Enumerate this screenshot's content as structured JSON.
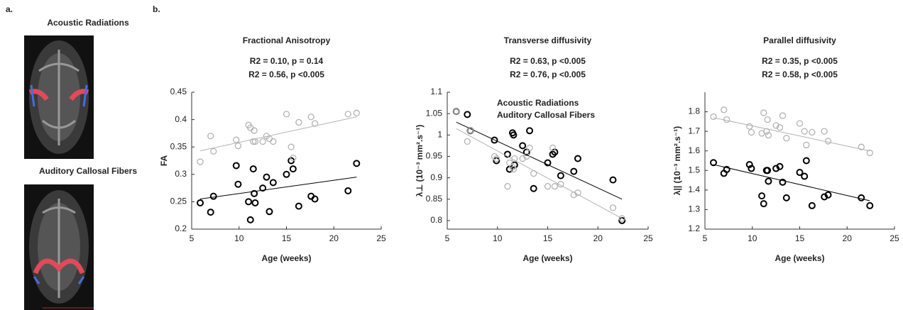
{
  "panel_a": {
    "label": "a.",
    "images": [
      {
        "title": "Acoustic Radiations",
        "color": "#000000"
      },
      {
        "title": "Auditory Callosal Fibers",
        "color": "#b3b3b3"
      }
    ]
  },
  "panel_b": {
    "label": "b."
  },
  "chart_data": [
    {
      "type": "scatter",
      "title": "Fractional Anisotropy",
      "annotations": [
        {
          "text": "R2 = 0.10, p = 0.14",
          "color": "#000000"
        },
        {
          "text": "R2 = 0.56, p <0.005",
          "color": "#b3b3b3"
        }
      ],
      "xlabel": "Age (weeks)",
      "ylabel": "FA",
      "xlim": [
        5,
        25
      ],
      "xticks": [
        5,
        10,
        15,
        20,
        25
      ],
      "ylim": [
        0.2,
        0.45
      ],
      "yticks": [
        0.2,
        0.25,
        0.3,
        0.35,
        0.4,
        0.45
      ],
      "series": [
        {
          "color": "#000000",
          "x": [
            5.9,
            7.0,
            7.3,
            9.7,
            9.9,
            11.0,
            11.2,
            11.5,
            11.6,
            11.7,
            12.5,
            12.9,
            13.2,
            13.6,
            15.0,
            15.5,
            15.7,
            16.3,
            17.6,
            18.0,
            21.5,
            22.4
          ],
          "values": [
            0.248,
            0.231,
            0.26,
            0.316,
            0.282,
            0.25,
            0.217,
            0.31,
            0.265,
            0.248,
            0.275,
            0.295,
            0.232,
            0.285,
            0.3,
            0.325,
            0.31,
            0.242,
            0.26,
            0.255,
            0.27,
            0.32
          ],
          "fit": {
            "x": [
              5.9,
              22.4
            ],
            "values": [
              0.255,
              0.295
            ]
          }
        },
        {
          "color": "#b3b3b3",
          "x": [
            5.9,
            7.0,
            7.3,
            9.7,
            9.9,
            11.0,
            11.2,
            11.5,
            11.6,
            11.7,
            12.5,
            12.9,
            13.2,
            13.6,
            15.0,
            15.5,
            15.7,
            16.3,
            17.6,
            18.0,
            21.5,
            22.4
          ],
          "values": [
            0.323,
            0.37,
            0.342,
            0.363,
            0.352,
            0.39,
            0.385,
            0.36,
            0.38,
            0.36,
            0.36,
            0.37,
            0.365,
            0.36,
            0.41,
            0.35,
            0.33,
            0.395,
            0.405,
            0.393,
            0.41,
            0.412
          ],
          "fit": {
            "x": [
              5.9,
              22.4
            ],
            "values": [
              0.343,
              0.405
            ]
          }
        }
      ]
    },
    {
      "type": "scatter",
      "title": "Transverse diffusivity",
      "annotations": [
        {
          "text": "R2 = 0.63, p <0.005",
          "color": "#000000"
        },
        {
          "text": "R2 = 0.76, p <0.005",
          "color": "#b3b3b3"
        }
      ],
      "xlabel": "Age (weeks)",
      "ylabel": "λ⊥ (10⁻³ mm².s⁻¹)",
      "legend": "top",
      "xlim": [
        5,
        25
      ],
      "xticks": [
        5,
        10,
        15,
        20,
        25
      ],
      "ylim": [
        0.78,
        1.1
      ],
      "yticks": [
        0.8,
        0.85,
        0.9,
        0.95,
        1,
        1.05,
        1.1
      ],
      "series": [
        {
          "name": "Acoustic Radiations",
          "color": "#000000",
          "x": [
            5.9,
            7.0,
            7.3,
            9.7,
            9.9,
            11.0,
            11.2,
            11.5,
            11.6,
            11.7,
            12.5,
            12.9,
            13.2,
            13.6,
            15.0,
            15.5,
            15.7,
            16.3,
            17.6,
            18.0,
            21.5,
            22.4
          ],
          "values": [
            1.055,
            1.048,
            1.01,
            0.988,
            0.94,
            0.955,
            0.92,
            1.005,
            1.0,
            0.93,
            0.975,
            0.96,
            1.01,
            0.875,
            0.935,
            0.955,
            0.96,
            0.905,
            0.915,
            0.945,
            0.895,
            0.8
          ],
          "fit": {
            "x": [
              5.9,
              22.4
            ],
            "values": [
              1.03,
              0.85
            ]
          }
        },
        {
          "name": "Auditory Callosal Fibers",
          "color": "#b3b3b3",
          "x": [
            5.9,
            7.0,
            7.3,
            9.7,
            9.9,
            11.0,
            11.2,
            11.5,
            11.6,
            11.7,
            12.5,
            12.9,
            13.2,
            13.6,
            15.0,
            15.5,
            15.7,
            16.3,
            17.6,
            18.0,
            21.5,
            22.4
          ],
          "values": [
            1.055,
            0.985,
            1.01,
            0.95,
            0.945,
            0.88,
            0.935,
            0.925,
            0.92,
            0.945,
            0.945,
            0.95,
            0.97,
            0.91,
            0.88,
            0.97,
            0.88,
            0.885,
            0.86,
            0.865,
            0.83,
            0.805
          ],
          "fit": {
            "x": [
              5.9,
              22.4
            ],
            "values": [
              1.015,
              0.805
            ]
          }
        }
      ]
    },
    {
      "type": "scatter",
      "title": "Parallel diffusivity",
      "annotations": [
        {
          "text": "R2 = 0.35, p <0.005",
          "color": "#000000"
        },
        {
          "text": "R2 = 0.58, p <0.005",
          "color": "#b3b3b3"
        }
      ],
      "xlabel": "Age (weeks)",
      "ylabel": "λ|| (10⁻³ mm².s⁻¹)",
      "xlim": [
        5,
        25
      ],
      "xticks": [
        5,
        10,
        15,
        20,
        25
      ],
      "ylim": [
        1.2,
        1.9
      ],
      "yticks": [
        1.2,
        1.3,
        1.4,
        1.5,
        1.6,
        1.7,
        1.8
      ],
      "series": [
        {
          "color": "#000000",
          "x": [
            5.9,
            7.0,
            7.3,
            9.7,
            9.9,
            11.0,
            11.2,
            11.5,
            11.6,
            11.7,
            12.5,
            12.9,
            13.2,
            13.6,
            15.0,
            15.5,
            15.7,
            16.3,
            17.6,
            18.0,
            21.5,
            22.4
          ],
          "values": [
            1.54,
            1.485,
            1.505,
            1.53,
            1.51,
            1.37,
            1.33,
            1.5,
            1.5,
            1.445,
            1.51,
            1.52,
            1.44,
            1.36,
            1.49,
            1.47,
            1.55,
            1.32,
            1.365,
            1.375,
            1.36,
            1.32
          ],
          "fit": {
            "x": [
              5.9,
              22.4
            ],
            "values": [
              1.53,
              1.345
            ]
          }
        },
        {
          "color": "#b3b3b3",
          "x": [
            5.9,
            7.0,
            7.3,
            9.7,
            9.9,
            11.0,
            11.2,
            11.5,
            11.6,
            11.7,
            12.5,
            12.9,
            13.2,
            13.6,
            15.0,
            15.5,
            15.7,
            16.3,
            17.6,
            18.0,
            21.5,
            22.4
          ],
          "values": [
            1.775,
            1.81,
            1.76,
            1.725,
            1.695,
            1.69,
            1.795,
            1.7,
            1.76,
            1.68,
            1.73,
            1.72,
            1.78,
            1.665,
            1.74,
            1.7,
            1.63,
            1.695,
            1.7,
            1.65,
            1.62,
            1.59
          ],
          "fit": {
            "x": [
              5.9,
              22.4
            ],
            "values": [
              1.77,
              1.6
            ]
          }
        }
      ]
    }
  ]
}
